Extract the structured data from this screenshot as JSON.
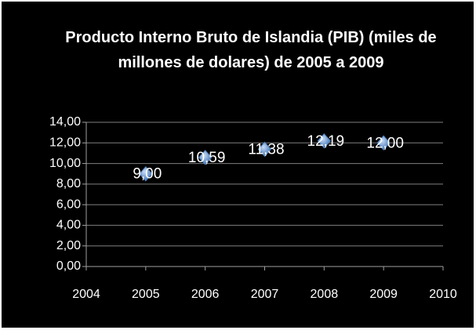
{
  "chart_data": {
    "type": "scatter",
    "title": "Producto Interno Bruto de Islandia (PIB) (miles de millones de dolares) de 2005 a 2009",
    "series": [
      {
        "color": "#4f81bd",
        "x": [
          2005,
          2006,
          2007,
          2008,
          2009
        ],
        "values": [
          9.0,
          10.59,
          11.38,
          12.19,
          12.0
        ],
        "value_labels": [
          "9,00",
          "10,59",
          "11,38",
          "12,19",
          "12,00"
        ]
      }
    ],
    "xlim": [
      2004,
      2010
    ],
    "xticks": [
      2004,
      2005,
      2006,
      2007,
      2008,
      2009,
      2010
    ],
    "ylim": [
      0,
      14
    ],
    "yticks": [
      {
        "value": 0,
        "label": "0,00"
      },
      {
        "value": 2,
        "label": "2,00"
      },
      {
        "value": 4,
        "label": "4,00"
      },
      {
        "value": 6,
        "label": "6,00"
      },
      {
        "value": 8,
        "label": "8,00"
      },
      {
        "value": 10,
        "label": "10,00"
      },
      {
        "value": 12,
        "label": "12,00"
      },
      {
        "value": 14,
        "label": "14,00"
      }
    ],
    "grid": true
  }
}
